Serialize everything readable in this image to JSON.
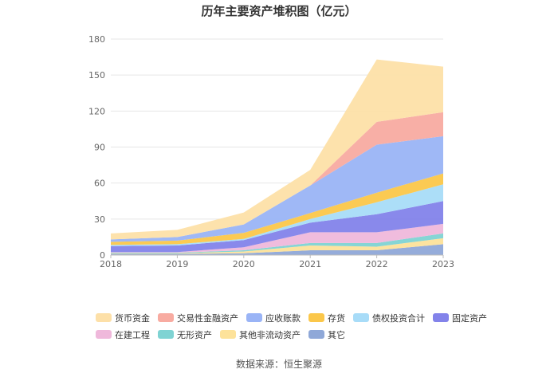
{
  "chart_data": {
    "type": "area",
    "stacked": true,
    "title": "历年主要资产堆积图（亿元）",
    "x": [
      "2018",
      "2019",
      "2020",
      "2021",
      "2022",
      "2023"
    ],
    "ylim": [
      0,
      180
    ],
    "yticks": [
      "0",
      "30",
      "60",
      "90",
      "120",
      "150",
      "180"
    ],
    "grid": true,
    "legend_position": "bottom",
    "series": [
      {
        "name": "其它",
        "color": "#8fa8d8",
        "values": [
          1.0,
          1.0,
          1.5,
          4,
          4,
          9
        ]
      },
      {
        "name": "其他非流动资产",
        "color": "#fde29a",
        "values": [
          0.5,
          0.5,
          1.5,
          4,
          3,
          5
        ]
      },
      {
        "name": "无形资产",
        "color": "#7fd3d3",
        "values": [
          0.5,
          0.5,
          1.0,
          2,
          3,
          4
        ]
      },
      {
        "name": "在建工程",
        "color": "#efb8db",
        "values": [
          0.5,
          0.5,
          2.5,
          9,
          9,
          8
        ]
      },
      {
        "name": "固定资产",
        "color": "#8383ea",
        "values": [
          5,
          5.5,
          6,
          8,
          15,
          19
        ]
      },
      {
        "name": "债权投资合计",
        "color": "#a8dcf8",
        "values": [
          1,
          1,
          1,
          3,
          10,
          14
        ]
      },
      {
        "name": "存货",
        "color": "#fbc74a",
        "values": [
          2.5,
          3,
          5,
          5,
          8,
          9
        ]
      },
      {
        "name": "应收账款",
        "color": "#9ab4f6",
        "values": [
          2,
          3,
          7,
          23,
          40,
          31
        ]
      },
      {
        "name": "交易性金融资产",
        "color": "#f8aba1",
        "values": [
          0,
          0,
          0,
          0,
          19,
          20
        ]
      },
      {
        "name": "货币资金",
        "color": "#fde0a8",
        "values": [
          5,
          6,
          10,
          13,
          52,
          38
        ]
      }
    ]
  },
  "legend_rows": [
    [
      {
        "label": "货币资金",
        "color": "#fde0a8"
      },
      {
        "label": "交易性金融资产",
        "color": "#f8aba1"
      },
      {
        "label": "应收账款",
        "color": "#9ab4f6"
      },
      {
        "label": "存货",
        "color": "#fbc74a"
      },
      {
        "label": "债权投资合计",
        "color": "#a8dcf8"
      },
      {
        "label": "固定资产",
        "color": "#8383ea"
      }
    ],
    [
      {
        "label": "在建工程",
        "color": "#efb8db"
      },
      {
        "label": "无形资产",
        "color": "#7fd3d3"
      },
      {
        "label": "其他非流动资产",
        "color": "#fde29a"
      },
      {
        "label": "其它",
        "color": "#8fa8d8"
      }
    ]
  ],
  "source": "数据来源：恒生聚源"
}
